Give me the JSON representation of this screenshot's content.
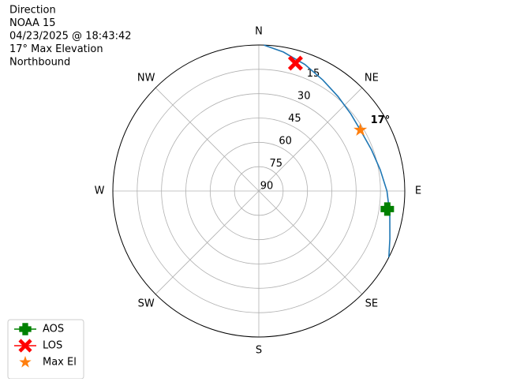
{
  "chart_data": {
    "type": "polar",
    "info_lines": [
      "Direction",
      "NOAA 15",
      "04/23/2025 @ 18:43:42",
      "17° Max Elevation",
      "Northbound"
    ],
    "theta_zero": "N",
    "theta_direction": "clockwise",
    "thetaticks": [
      {
        "value": 0,
        "label": "N"
      },
      {
        "value": 45,
        "label": "NE"
      },
      {
        "value": 90,
        "label": "E"
      },
      {
        "value": 135,
        "label": "SE"
      },
      {
        "value": 180,
        "label": "S"
      },
      {
        "value": 225,
        "label": "SW"
      },
      {
        "value": 270,
        "label": "W"
      },
      {
        "value": 315,
        "label": "NW"
      }
    ],
    "rlim": [
      90,
      0
    ],
    "rticks": [
      90,
      75,
      60,
      45,
      30,
      15
    ],
    "grid": true,
    "track": {
      "color": "#1f77b4",
      "azimuth": [
        117,
        110,
        100,
        90,
        80,
        70,
        60,
        50,
        40,
        30,
        20,
        10,
        2
      ],
      "elevation": [
        0,
        4,
        8,
        11,
        14,
        16,
        17,
        16,
        14,
        11,
        7,
        3,
        0
      ]
    },
    "markers": [
      {
        "name": "AOS",
        "color": "#008000",
        "marker": "plus",
        "line": true,
        "azimuth": 98,
        "elevation": 10
      },
      {
        "name": "LOS",
        "color": "#ff0000",
        "marker": "x",
        "line": true,
        "azimuth": 16,
        "elevation": 8
      },
      {
        "name": "Max El",
        "color": "#ff7f0e",
        "marker": "star",
        "line": false,
        "azimuth": 59,
        "elevation": 17
      }
    ],
    "annotation": {
      "text": "17°",
      "azimuth": 59,
      "elevation": 17
    },
    "legend_position": "lower left"
  }
}
